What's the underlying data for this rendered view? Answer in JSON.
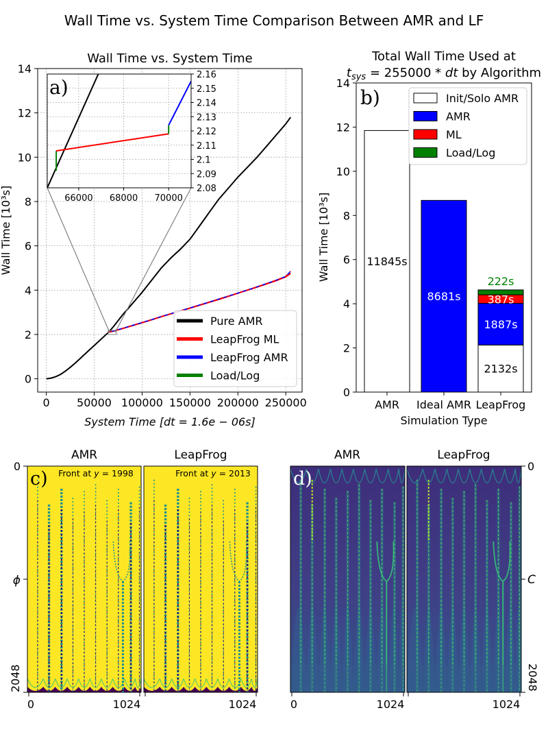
{
  "figure": {
    "suptitle": "Wall Time vs. System Time Comparison Between AMR and LF"
  },
  "chart_data": [
    {
      "id": "a",
      "type": "line",
      "title": "Wall Time vs. System Time",
      "panel_label": "a)",
      "xlabel": "System Time [dt = 1.6e − 06s]",
      "ylabel": "Wall Time [10³s]",
      "xlim": [
        -9000,
        267000
      ],
      "ylim": [
        -0.6,
        14
      ],
      "xticks": [
        0,
        50000,
        100000,
        150000,
        200000,
        250000
      ],
      "xtick_labels": [
        "0",
        "50000",
        "100000",
        "150000",
        "200000",
        "250000"
      ],
      "yticks": [
        0,
        2,
        4,
        6,
        8,
        10,
        12,
        14
      ],
      "ytick_labels": [
        "0",
        "2",
        "4",
        "6",
        "8",
        "10",
        "12",
        "14"
      ],
      "grid": true,
      "legend_position": "lower-right",
      "series": [
        {
          "name": "Pure AMR",
          "color": "#000000",
          "x": [
            0,
            5000,
            10000,
            15000,
            20000,
            25000,
            30000,
            40000,
            50000,
            60000,
            65000,
            70000,
            80000,
            90000,
            100000,
            110000,
            120000,
            130000,
            140000,
            150000,
            160000,
            170000,
            180000,
            190000,
            200000,
            210000,
            220000,
            230000,
            240000,
            250000,
            255000
          ],
          "y": [
            0.0,
            0.03,
            0.1,
            0.2,
            0.35,
            0.52,
            0.7,
            1.1,
            1.5,
            1.9,
            2.1,
            2.35,
            2.9,
            3.4,
            3.9,
            4.45,
            5.0,
            5.45,
            5.85,
            6.3,
            6.9,
            7.5,
            8.1,
            8.6,
            9.1,
            9.55,
            10.0,
            10.5,
            11.0,
            11.5,
            11.8
          ]
        },
        {
          "name": "LeapFrog ML",
          "color": "#ff0000",
          "x": [
            65000,
            70000,
            80000,
            90000,
            100000,
            110000,
            120000,
            130000,
            140000,
            150000,
            160000,
            170000,
            180000,
            190000,
            200000,
            210000,
            220000,
            230000,
            240000,
            250000,
            255000
          ],
          "y": [
            2.1,
            2.15,
            2.27,
            2.4,
            2.53,
            2.66,
            2.8,
            2.93,
            3.06,
            3.19,
            3.32,
            3.45,
            3.58,
            3.72,
            3.86,
            4.0,
            4.14,
            4.28,
            4.43,
            4.6,
            4.75
          ]
        },
        {
          "name": "LeapFrog AMR",
          "color": "#0000ff",
          "x": [
            65000,
            70000,
            80000,
            90000,
            100000,
            110000,
            120000,
            130000,
            140000,
            150000,
            160000,
            170000,
            180000,
            190000,
            200000,
            210000,
            220000,
            230000,
            240000,
            250000,
            255000
          ],
          "y": [
            2.1,
            2.16,
            2.28,
            2.41,
            2.54,
            2.67,
            2.81,
            2.94,
            3.07,
            3.2,
            3.33,
            3.46,
            3.6,
            3.73,
            3.87,
            4.01,
            4.15,
            4.3,
            4.45,
            4.62,
            4.85
          ]
        },
        {
          "name": "Load/Log",
          "color": "#008000",
          "x": [],
          "y": []
        }
      ],
      "inset": {
        "xlim": [
          64600,
          71000
        ],
        "ylim": [
          2.08,
          2.16
        ],
        "xticks": [
          66000,
          68000,
          70000
        ],
        "xtick_labels": [
          "66000",
          "68000",
          "70000"
        ],
        "yticks": [
          2.08,
          2.09,
          2.1,
          2.11,
          2.12,
          2.13,
          2.14,
          2.15,
          2.16
        ],
        "ytick_labels": [
          "2.08",
          "2.09",
          "2.1",
          "2.11",
          "2.12",
          "2.13",
          "2.14",
          "2.15",
          "2.16"
        ],
        "segments": [
          {
            "name": "Pure AMR",
            "color": "#000000",
            "x": [
              64600,
              66870
            ],
            "y": [
              2.08,
              2.16
            ]
          },
          {
            "name": "Load/Log",
            "color": "#008000",
            "x": [
              65000,
              65000,
              65000
            ],
            "y": [
              2.092,
              2.1,
              2.106
            ]
          },
          {
            "name": "LeapFrog ML",
            "color": "#ff0000",
            "x": [
              65000,
              70000
            ],
            "y": [
              2.106,
              2.118
            ]
          },
          {
            "name": "Load/Log",
            "color": "#008000",
            "x": [
              70000,
              70000
            ],
            "y": [
              2.118,
              2.124
            ]
          },
          {
            "name": "LeapFrog AMR",
            "color": "#0000ff",
            "x": [
              70000,
              71000
            ],
            "y": [
              2.124,
              2.155
            ]
          }
        ]
      }
    },
    {
      "id": "b",
      "type": "bar",
      "title": "Total Wall Time Used at",
      "title_line2_math": "t",
      "title_line2_sub": "sys",
      "title_line2_eq": " = 255000 * ",
      "title_line2_dt": "dt",
      "title_line2_rest": " by Algorithm",
      "panel_label": "b)",
      "xlabel": "Simulation Type",
      "ylabel": "Wall Time [10³s]",
      "ylim": [
        0,
        14
      ],
      "yticks": [
        0,
        2,
        4,
        6,
        8,
        10,
        12,
        14
      ],
      "ytick_labels": [
        "0",
        "2",
        "4",
        "6",
        "8",
        "10",
        "12",
        "14"
      ],
      "categories": [
        "AMR",
        "Ideal AMR",
        "LeapFrog"
      ],
      "legend_position": "top-right",
      "series": [
        {
          "name": "Init/Solo AMR",
          "color": "#ffffff",
          "values": [
            11.845,
            0,
            2.132
          ]
        },
        {
          "name": "AMR",
          "color": "#0000ff",
          "values": [
            0,
            8.681,
            1.887
          ]
        },
        {
          "name": "ML",
          "color": "#ff0000",
          "values": [
            0,
            0,
            0.387
          ]
        },
        {
          "name": "Load/Log",
          "color": "#008000",
          "values": [
            0,
            0,
            0.222
          ]
        }
      ],
      "bar_labels": [
        {
          "text": "11845s",
          "color": "#000000"
        },
        {
          "text": "8681s",
          "color": "#ffffff"
        },
        {
          "text": "2132s",
          "color": "#000000"
        },
        {
          "text": "1887s",
          "color": "#ffffff"
        },
        {
          "text": "387s",
          "color": "#ffffff"
        },
        {
          "text": "222s",
          "color": "#008000"
        }
      ]
    },
    {
      "id": "c",
      "type": "heatmap",
      "panel_label": "c)",
      "field_label": "ϕ",
      "colormap": [
        "#440154",
        "#3b528b",
        "#21918c",
        "#5ec962",
        "#fde725"
      ],
      "background_color": "#fde725",
      "y_top_label": "0",
      "y_bottom_label": "2048",
      "panels": [
        {
          "title": "AMR",
          "note_prefix": "Front at ",
          "note_var": "y",
          "note_value": " = 1998",
          "x_labels": [
            "0",
            "1024"
          ]
        },
        {
          "title": "LeapFrog",
          "note_prefix": "Front at ",
          "note_var": "y",
          "note_value": " = 2013",
          "x_labels": [
            "0",
            "1024"
          ]
        }
      ],
      "stream_positions": [
        0.09,
        0.19,
        0.3,
        0.4,
        0.5,
        0.6,
        0.7,
        0.8,
        0.91,
        0.985
      ],
      "stream_tops": [
        0.06,
        0.17,
        0.1,
        0.14,
        0.11,
        0.08,
        0.15,
        0.1,
        0.16,
        0.09
      ]
    },
    {
      "id": "d",
      "type": "heatmap",
      "panel_label": "d)",
      "field_label": "C",
      "colormap": [
        "#440154",
        "#3b528b",
        "#21918c",
        "#5ec962",
        "#fde725"
      ],
      "background_color": "#46327e",
      "y_top_label": "0",
      "y_bottom_label": "2048",
      "panels": [
        {
          "title": "AMR",
          "x_labels": [
            "0",
            "1024"
          ]
        },
        {
          "title": "LeapFrog",
          "x_labels": [
            "0",
            "1024"
          ]
        }
      ]
    }
  ]
}
